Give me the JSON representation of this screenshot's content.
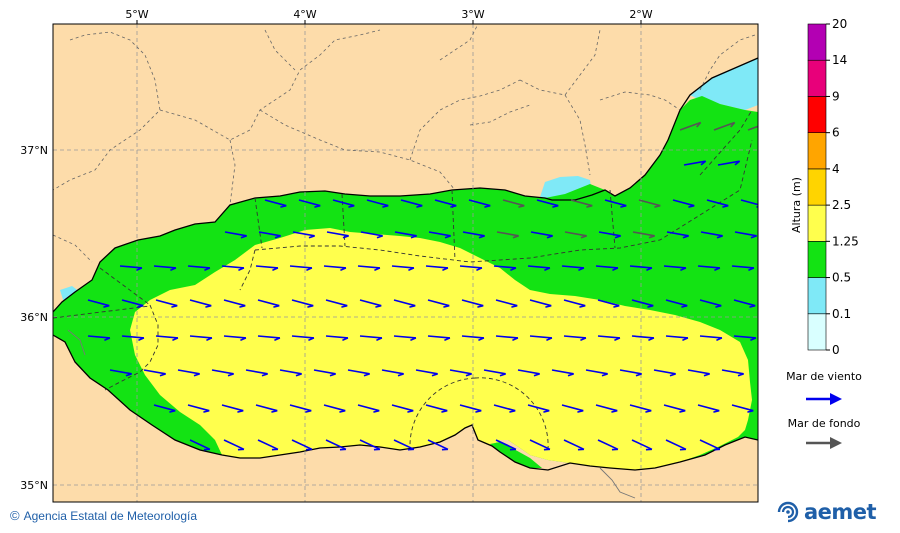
{
  "map": {
    "longitude_labels": [
      "5°W",
      "4°W",
      "3°W",
      "2°W"
    ],
    "latitude_labels": [
      "37°N",
      "36°N",
      "35°N"
    ]
  },
  "legend": {
    "title": "Altura (m)",
    "levels": [
      "0",
      "0.1",
      "0.5",
      "1.25",
      "2.5",
      "4",
      "6",
      "9",
      "14",
      "20"
    ],
    "colors": [
      "#d9ffff",
      "#7fe9f7",
      "#13e313",
      "#ffff4d",
      "#ffd400",
      "#ffa500",
      "#ff0000",
      "#e8007a",
      "#b300b3"
    ],
    "wind_sea_label": "Mar de viento",
    "swell_label": "Mar de fondo",
    "wind_sea_color": "#0000ee",
    "swell_color": "#555555"
  },
  "colors": {
    "land": "#fddcaa",
    "sea_low": "#7fe9f7",
    "sea_mid": "#13e313",
    "sea_high": "#ffff4d",
    "border": "#666666"
  },
  "footer": {
    "copyright_symbol": "©",
    "credit": "Agencia Estatal de Meteorología",
    "logo_text": "aemet"
  }
}
